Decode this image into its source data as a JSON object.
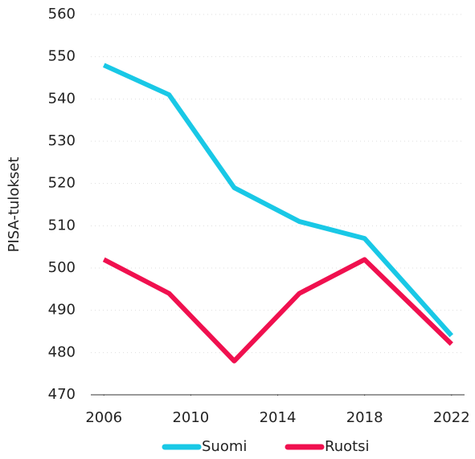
{
  "chart_data": {
    "type": "line",
    "y_label": "PISA-tulokset",
    "x": [
      2006,
      2009,
      2012,
      2015,
      2018,
      2022
    ],
    "series": [
      {
        "name": "Suomi",
        "color": "#19c8e6",
        "values": [
          548,
          541,
          519,
          511,
          507,
          484
        ]
      },
      {
        "name": "Ruotsi",
        "color": "#f0104f",
        "values": [
          502,
          494,
          478,
          494,
          502,
          482
        ]
      }
    ],
    "xlim": [
      2005.4,
      2022.6
    ],
    "xticks": [
      2006,
      2010,
      2014,
      2018,
      2022
    ],
    "ylim": [
      470,
      560
    ],
    "yticks": [
      470,
      480,
      490,
      500,
      510,
      520,
      530,
      540,
      550,
      560
    ],
    "grid": true,
    "legend": "bottom"
  }
}
